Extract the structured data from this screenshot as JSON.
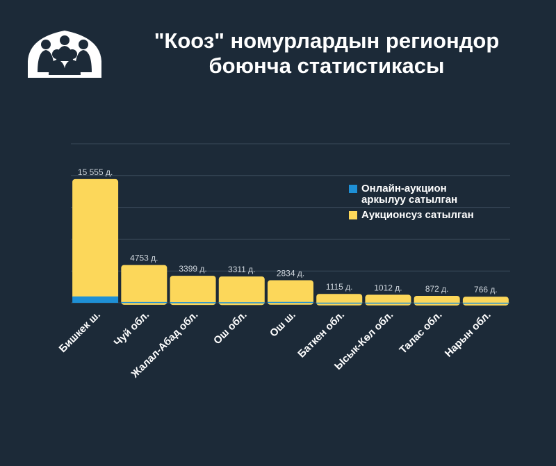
{
  "title": {
    "line1": "\"Кооз\" номурлардын региондор",
    "line2": "боюнча статистикасы"
  },
  "logo": {
    "icon": "yurt-people-icon"
  },
  "colors": {
    "background": "#1c2a38",
    "online": "#1e90d6",
    "offline": "#fcd75a",
    "grid": "#3a4a5a",
    "label": "#cfd6dd",
    "text": "#ffffff"
  },
  "legend": {
    "online": "Онлайн-аукцион аркылуу сатылган",
    "offline": "Аукционсуз сатылган"
  },
  "chart_data": {
    "type": "bar",
    "stacked": true,
    "categories": [
      "Бишкек ш.",
      "Чуй обл.",
      "Жалал-Абад обл.",
      "Ош обл.",
      "Ош ш.",
      "Баткен обл.",
      "Ысык-Көл обл.",
      "Талас обл.",
      "Нарын обл."
    ],
    "series": [
      {
        "name": "Онлайн-аукцион аркылуу сатылган",
        "values": [
          800,
          100,
          80,
          70,
          110,
          20,
          20,
          15,
          15
        ]
      },
      {
        "name": "Аукционсуз сатылган",
        "values": [
          14755,
          4653,
          3319,
          3241,
          2724,
          1095,
          992,
          857,
          751
        ]
      }
    ],
    "totals": [
      15555,
      4753,
      3399,
      3311,
      2834,
      1115,
      1012,
      872,
      766
    ],
    "total_labels": [
      "15 555 д.",
      "4753 д.",
      "3399 д.",
      "3311 д.",
      "2834 д.",
      "1115 д.",
      "1012 д.",
      "872 д.",
      "766 д."
    ],
    "ylim": [
      0,
      20000
    ],
    "grid": true,
    "legend_position": "right"
  }
}
